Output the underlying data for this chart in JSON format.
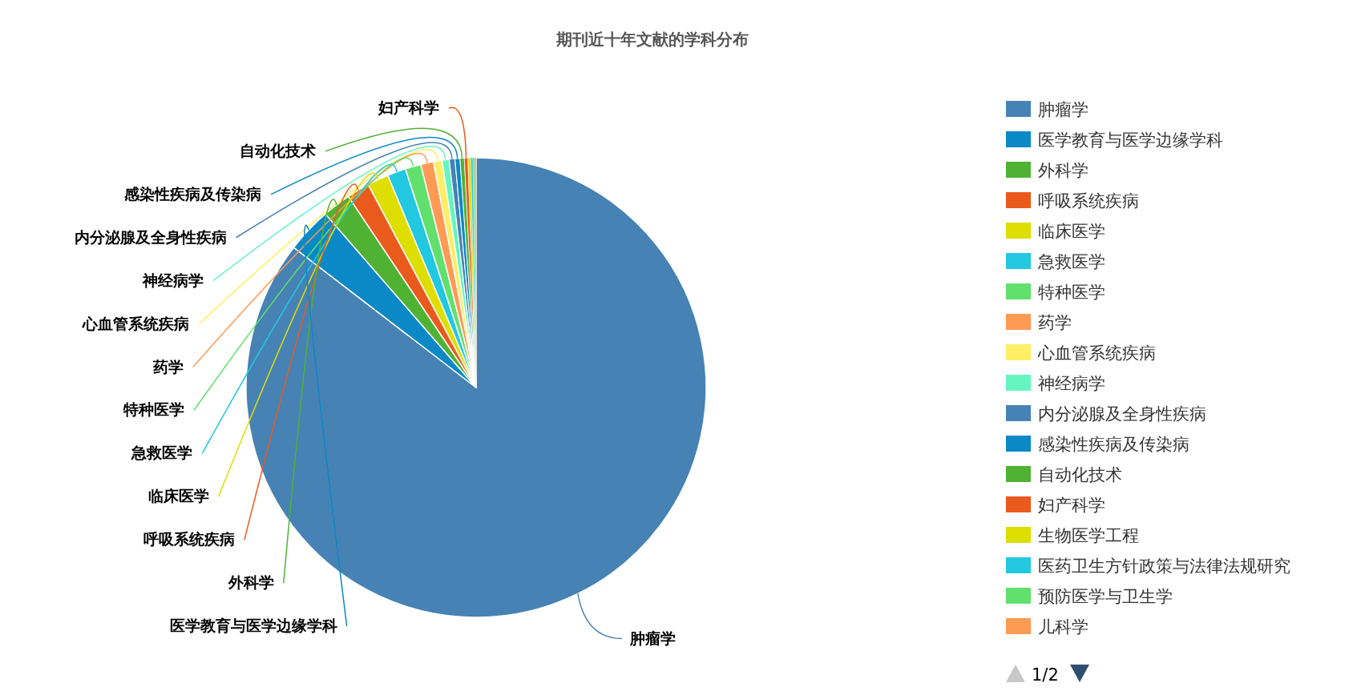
{
  "chart_data": {
    "type": "pie",
    "title": "期刊近十年文献的学科分布",
    "categories": [
      "肿瘤学",
      "医学教育与医学边缘学科",
      "外科学",
      "呼吸系统疾病",
      "临床医学",
      "急救医学",
      "特种医学",
      "药学",
      "心血管系统疾病",
      "神经病学",
      "内分泌腺及全身性疾病",
      "感染性疾病及传染病",
      "自动化技术",
      "妇产科学",
      "生物医学工程",
      "医药卫生方针政策与法律法规研究",
      "预防医学与卫生学",
      "儿科学"
    ],
    "values": [
      85.43,
      3.2,
      2,
      1.6,
      1.5,
      1.3,
      1.1,
      0.9,
      0.6,
      0.5,
      0.4,
      0.35,
      0.3,
      0.25,
      0.2,
      0.15,
      0.12,
      0.1
    ],
    "colors": [
      "#4682b4",
      "#0a89c6",
      "#4fb233",
      "#eb5a1d",
      "#dede00",
      "#22c8e0",
      "#62e06e",
      "#ff9a55",
      "#ffee66",
      "#66f5c0",
      "#4682b4",
      "#0a89c6",
      "#4fb233",
      "#eb5a1d",
      "#dede00",
      "#22c8e0",
      "#62e06e",
      "#ff9a55"
    ],
    "legend": "right",
    "annotations": [
      "1/2"
    ]
  }
}
